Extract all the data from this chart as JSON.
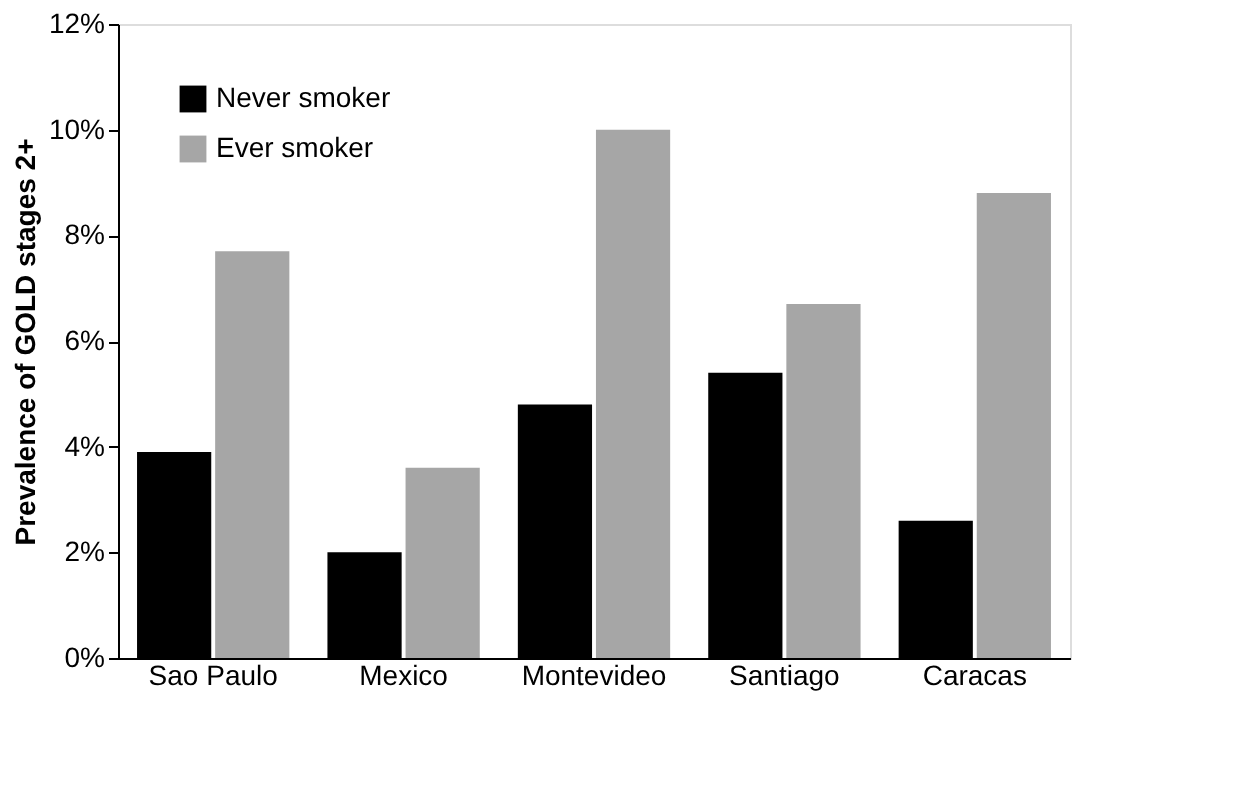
{
  "chart_data": {
    "type": "bar",
    "ylabel": "Prevalence of GOLD stages 2+",
    "categories": [
      "Sao Paulo",
      "Mexico",
      "Montevideo",
      "Santiago",
      "Caracas"
    ],
    "series": [
      {
        "name": "Never smoker",
        "color": "#000000",
        "values": [
          3.9,
          2.0,
          4.8,
          5.4,
          2.6
        ]
      },
      {
        "name": "Ever smoker",
        "color": "#a6a6a6",
        "values": [
          7.7,
          3.6,
          10.0,
          6.7,
          8.8
        ]
      }
    ],
    "ylim": [
      0,
      12
    ],
    "yticks": [
      {
        "value": 0,
        "label": "0%"
      },
      {
        "value": 2,
        "label": "2%"
      },
      {
        "value": 4,
        "label": "4%"
      },
      {
        "value": 6,
        "label": "6%"
      },
      {
        "value": 8,
        "label": "8%"
      },
      {
        "value": 10,
        "label": "10%"
      },
      {
        "value": 12,
        "label": "12%"
      }
    ],
    "grid": false,
    "legend": "top left"
  }
}
